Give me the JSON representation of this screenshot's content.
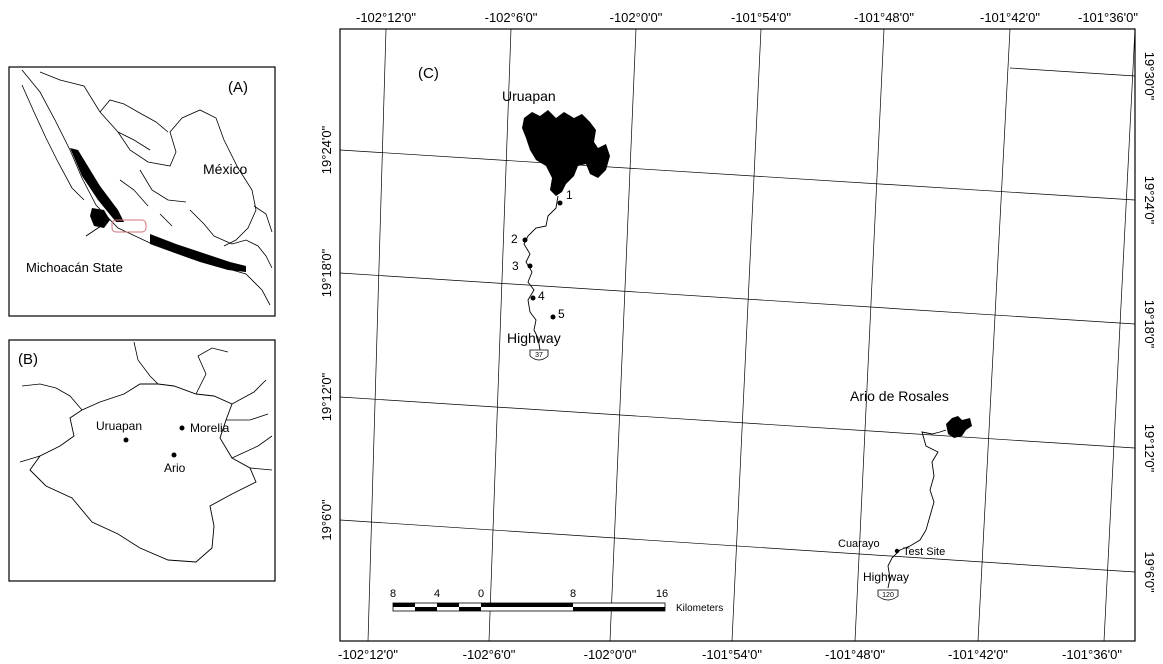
{
  "panel_a": {
    "label": "(A)",
    "country": "México",
    "state_label": "Michoacán State"
  },
  "panel_b": {
    "label": "(B)",
    "cities": [
      "Uruapan",
      "Morelia",
      "Ario"
    ]
  },
  "panel_c": {
    "label": "(C)",
    "top_lon_labels": [
      "-102°12'0\"",
      "-102°6'0\"",
      "-102°0'0\"",
      "-101°54'0\"",
      "-101°48'0\"",
      "-101°42'0\"",
      "-101°36'0\""
    ],
    "bottom_lon_labels": [
      "-102°12'0\"",
      "-102°6'0\"",
      "-102°0'0\"",
      "-101°54'0\"",
      "-101°48'0\"",
      "-101°42'0\"",
      "-101°36'0\""
    ],
    "left_lat_labels": [
      "19°24'0\"",
      "19°18'0\"",
      "19°12'0\"",
      "19°6'0\""
    ],
    "right_lat_labels": [
      "19°30'0\"",
      "19°24'0\"",
      "19°18'0\"",
      "19°12'0\"",
      "19°6'0\""
    ],
    "places": {
      "uruapan": "Uruapan",
      "ario": "Ario de Rosales",
      "cuarayo": "Cuarayo",
      "test_site": "Test Site",
      "highway_a": "Highway",
      "highway_b": "Highway",
      "shield_37": "37",
      "shield_120": "120"
    },
    "sites": [
      "1",
      "2",
      "3",
      "4",
      "5"
    ],
    "scale": {
      "ticks": [
        "8",
        "4",
        "0",
        "8",
        "16"
      ],
      "unit": "Kilometers"
    }
  }
}
